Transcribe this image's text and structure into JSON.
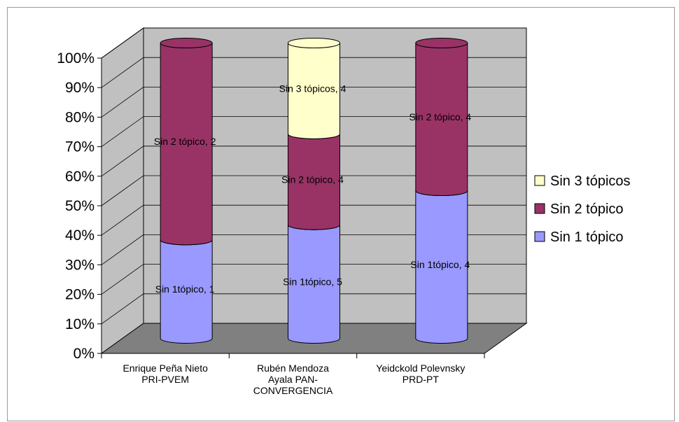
{
  "chart_data": {
    "type": "bar",
    "stacked": "percent",
    "style": "3d-cylinder",
    "title": "",
    "xlabel": "",
    "ylabel": "",
    "ylim": [
      0,
      100
    ],
    "y_ticks": [
      "0%",
      "10%",
      "20%",
      "30%",
      "40%",
      "50%",
      "60%",
      "70%",
      "80%",
      "90%",
      "100%"
    ],
    "categories": [
      [
        "Enrique Peña Nieto",
        "PRI-PVEM"
      ],
      [
        "Rubén Mendoza",
        "Ayala PAN-",
        "CONVERGENCIA"
      ],
      [
        "Yeidckold Polevnsky",
        "PRD-PT"
      ]
    ],
    "series": [
      {
        "name": "Sin 1 tópico",
        "color": "#9999ff",
        "values": [
          1,
          5,
          4
        ],
        "data_labels": [
          "Sin 1tópico, 1",
          "Sin 1tópico, 5",
          "Sin 1tópico, 4"
        ]
      },
      {
        "name": "Sin 2 tópico",
        "color": "#993366",
        "values": [
          2,
          4,
          4
        ],
        "data_labels": [
          "Sin 2 tópico, 2",
          "Sin 2 tópico, 4",
          "Sin 2 tópico, 4"
        ]
      },
      {
        "name": "Sin 3 tópicos",
        "color": "#ffffcc",
        "values": [
          0,
          4,
          0
        ],
        "data_labels": [
          "",
          "Sin 3 tópicos, 4",
          ""
        ]
      }
    ],
    "legend": {
      "position": "right",
      "order": [
        "Sin 3 tópicos",
        "Sin 2 tópico",
        "Sin 1 tópico"
      ]
    },
    "grid": true,
    "colors": {
      "wall": "#c0c0c0",
      "floor": "#808080",
      "gridline": "#000000"
    }
  }
}
